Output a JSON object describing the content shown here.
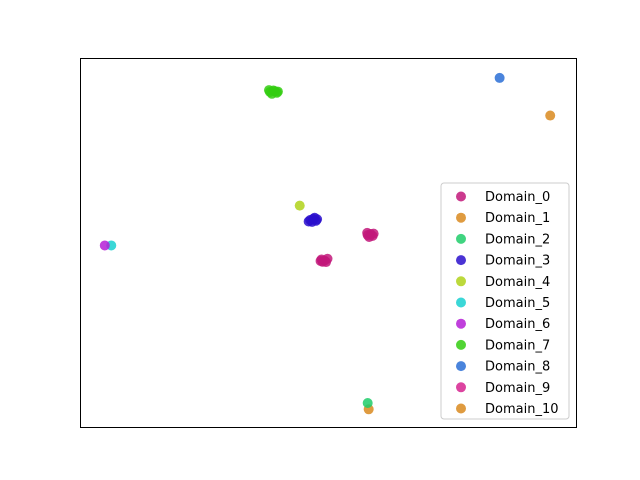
{
  "chart_data": {
    "type": "scatter",
    "title": "",
    "xlabel": "",
    "ylabel": "",
    "xlim": [
      0,
      100
    ],
    "ylim": [
      0,
      100
    ],
    "axes_visible": false,
    "grid": false,
    "legend_position": "lower right",
    "series": [
      {
        "name": "Domain_0",
        "color": "#c2187a",
        "points": [
          [
            58.0,
            52.0
          ],
          [
            58.6,
            52.3
          ],
          [
            59.0,
            51.8
          ],
          [
            58.3,
            51.5
          ],
          [
            59.2,
            52.4
          ],
          [
            57.9,
            52.6
          ],
          [
            48.7,
            45.4
          ],
          [
            49.3,
            45.1
          ],
          [
            49.9,
            45.6
          ],
          [
            48.9,
            44.8
          ],
          [
            49.6,
            44.7
          ],
          [
            48.5,
            45.0
          ]
        ]
      },
      {
        "name": "Domain_1",
        "color": "#d98a1f",
        "points": [
          [
            94.8,
            84.4
          ],
          [
            58.2,
            4.8
          ]
        ]
      },
      {
        "name": "Domain_2",
        "color": "#1fcc6a",
        "points": [
          [
            58.0,
            6.5
          ]
        ]
      },
      {
        "name": "Domain_3",
        "color": "#2a0fcc",
        "points": [
          [
            46.4,
            56.1
          ],
          [
            47.0,
            56.4
          ],
          [
            47.6,
            55.9
          ],
          [
            46.8,
            55.6
          ],
          [
            47.3,
            56.7
          ],
          [
            46.1,
            55.7
          ],
          [
            47.8,
            56.3
          ]
        ]
      },
      {
        "name": "Domain_4",
        "color": "#b0d21a",
        "points": [
          [
            44.3,
            60.0
          ]
        ]
      },
      {
        "name": "Domain_5",
        "color": "#19d0d0",
        "points": [
          [
            6.3,
            49.2
          ]
        ]
      },
      {
        "name": "Domain_6",
        "color": "#b51fd6",
        "points": [
          [
            5.0,
            49.2
          ]
        ]
      },
      {
        "name": "Domain_7",
        "color": "#33cc10",
        "points": [
          [
            38.3,
            90.8
          ],
          [
            39.0,
            91.2
          ],
          [
            39.7,
            90.6
          ],
          [
            38.7,
            90.3
          ],
          [
            39.3,
            91.0
          ],
          [
            38.1,
            91.3
          ],
          [
            39.9,
            90.9
          ]
        ]
      },
      {
        "name": "Domain_8",
        "color": "#2a6fd6",
        "points": [
          [
            84.6,
            94.6
          ]
        ]
      },
      {
        "name": "Domain_9",
        "color": "#d6238f",
        "points": []
      },
      {
        "name": "Domain_10",
        "color": "#d98a1f",
        "points": []
      }
    ]
  }
}
